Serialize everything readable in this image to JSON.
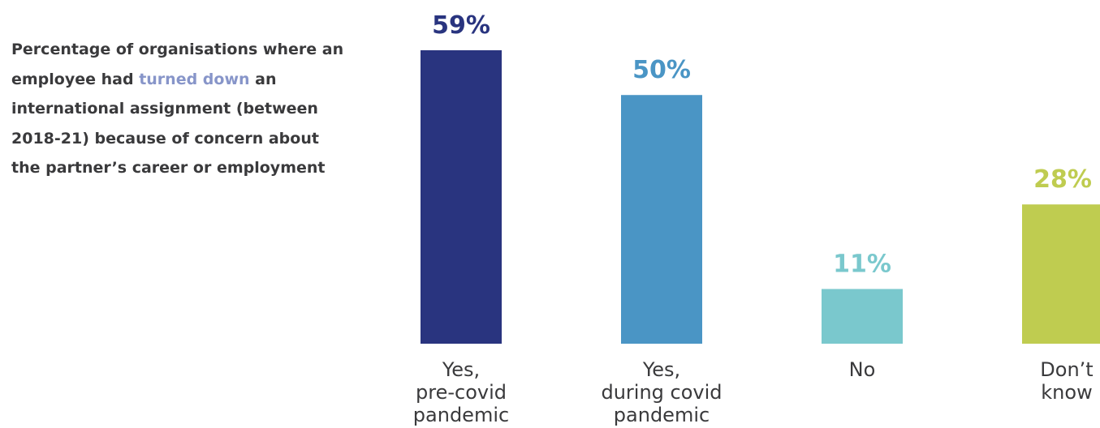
{
  "title": {
    "before": "Percentage of organisations where an employee had ",
    "highlight": "turned down",
    "after": " an international assignment (between 2018-21) because of concern about the partner’s career or employment",
    "highlight_color": "#8795c9"
  },
  "chart_data": {
    "type": "bar",
    "categories": [
      [
        "Yes,",
        "pre-covid",
        "pandemic"
      ],
      [
        "Yes,",
        "during covid",
        "pandemic"
      ],
      [
        "No"
      ],
      [
        "Don’t",
        "know"
      ]
    ],
    "values": [
      59,
      50,
      11,
      28
    ],
    "value_labels": [
      "59%",
      "50%",
      "11%",
      "28%"
    ],
    "colors": [
      "#29347f",
      "#4a95c5",
      "#7ac8cd",
      "#bfcc50"
    ],
    "ylim": [
      0,
      59
    ],
    "grid": false,
    "legend": "none"
  }
}
